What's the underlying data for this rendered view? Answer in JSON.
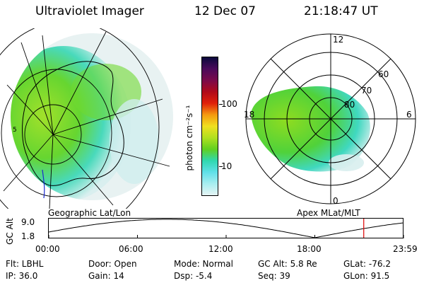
{
  "header": {
    "title": "Ultraviolet Imager",
    "date": "12 Dec 07",
    "time": "21:18:47 UT"
  },
  "colorbar": {
    "unit_label": "photon cm⁻²s⁻¹",
    "ticks": [
      {
        "label": "100",
        "value": 100
      },
      {
        "label": "10",
        "value": 10
      }
    ],
    "colors": [
      "#0a0a3c",
      "#4a0a5a",
      "#7a0a4a",
      "#b00a1a",
      "#e0200a",
      "#f59a10",
      "#f0e020",
      "#b0e020",
      "#60d020",
      "#30d8b0",
      "#60e0e8",
      "#a8eef0",
      "#e6f4f4"
    ]
  },
  "left_map": {
    "label": "Geographic Lat/Lon",
    "edge_marker": "5"
  },
  "right_map": {
    "label": "Apex  MLat/MLT",
    "mlt_labels": {
      "top": "12",
      "bottom": "0",
      "left": "18",
      "right": "6"
    },
    "mlat_labels": [
      "60",
      "70",
      "80"
    ]
  },
  "altitude_plot": {
    "ylabel": "GC Alt",
    "yticks": [
      "9.0",
      "1.8"
    ],
    "xticks": [
      "00:00",
      "06:00",
      "12:00",
      "18:00",
      "23:59"
    ],
    "current_time_hours": 21.31
  },
  "info": {
    "flt": "Flt: LBHL",
    "ip": "IP: 36.0",
    "door": "Door: Open",
    "gain": "Gain: 14",
    "mode": "Mode: Normal",
    "dsp": "Dsp:    -5.4",
    "gc_alt": "GC Alt: 5.8 Re",
    "seq": "Seq: 39",
    "glat": "GLat: -76.2",
    "glon": "GLon:  91.5"
  }
}
